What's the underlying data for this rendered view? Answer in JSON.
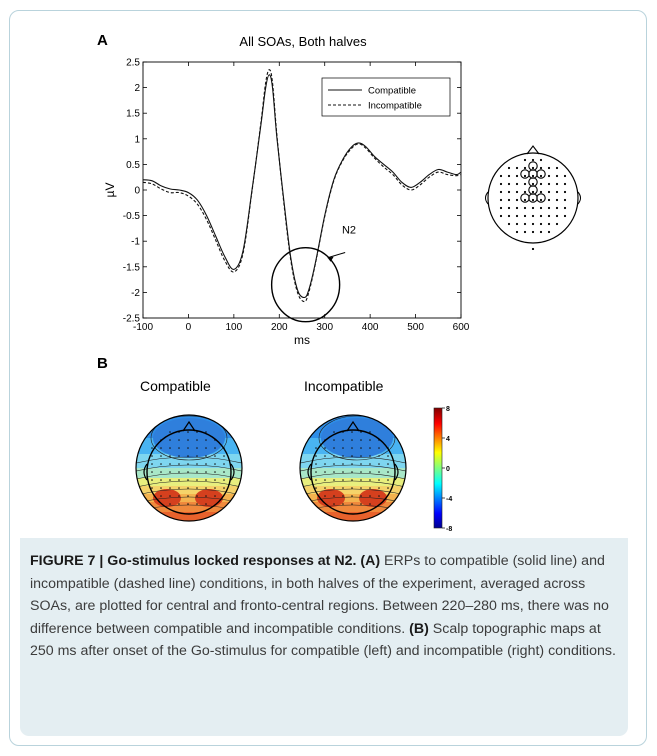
{
  "figure": {
    "panel_a_label": "A",
    "panel_b_label": "B",
    "plot_title": "All SOAs, Both halves",
    "annotation": "N2",
    "map_compatible_title": "Compatible",
    "map_incompatible_title": "Incompatible",
    "colorbar_ticks": [
      "8",
      "4",
      "0",
      "-4",
      "-8"
    ]
  },
  "chart_data": {
    "type": "line",
    "title": "All SOAs, Both halves",
    "xlabel": "ms",
    "ylabel": "µV",
    "xlim": [
      -100,
      600
    ],
    "ylim": [
      -2.5,
      2.5
    ],
    "x_ticks": [
      "-100",
      "0",
      "100",
      "200",
      "300",
      "400",
      "500",
      "600"
    ],
    "y_ticks": [
      "2.5",
      "2",
      "1.5",
      "1",
      "0.5",
      "0",
      "-0.5",
      "-1",
      "-1.5",
      "-2",
      "-2.5"
    ],
    "grid": false,
    "legend_position": "top-right",
    "series": [
      {
        "name": "Compatible",
        "style": "solid",
        "x": [
          -100,
          -80,
          -60,
          -40,
          -20,
          0,
          20,
          40,
          60,
          80,
          100,
          120,
          140,
          160,
          170,
          178,
          185,
          195,
          210,
          225,
          240,
          255,
          265,
          280,
          300,
          320,
          340,
          360,
          375,
          390,
          410,
          430,
          450,
          470,
          490,
          510,
          530,
          550,
          570,
          590,
          600
        ],
        "y": [
          0.2,
          0.18,
          0.08,
          0.02,
          0.0,
          -0.05,
          -0.2,
          -0.5,
          -0.9,
          -1.3,
          -1.55,
          -1.2,
          0.0,
          1.3,
          2.0,
          2.25,
          2.0,
          1.0,
          -0.2,
          -1.3,
          -1.95,
          -2.1,
          -1.95,
          -1.4,
          -0.5,
          0.2,
          0.6,
          0.85,
          0.92,
          0.85,
          0.65,
          0.5,
          0.35,
          0.15,
          0.05,
          0.15,
          0.3,
          0.4,
          0.35,
          0.3,
          0.35
        ]
      },
      {
        "name": "Incompatible",
        "style": "dashed",
        "x": [
          -100,
          -80,
          -60,
          -40,
          -20,
          0,
          20,
          40,
          60,
          80,
          100,
          120,
          140,
          160,
          170,
          178,
          185,
          195,
          210,
          225,
          240,
          255,
          265,
          280,
          300,
          320,
          340,
          360,
          375,
          390,
          410,
          430,
          450,
          470,
          490,
          510,
          530,
          550,
          570,
          590,
          600
        ],
        "y": [
          0.15,
          0.12,
          0.02,
          -0.05,
          -0.05,
          -0.12,
          -0.28,
          -0.58,
          -0.98,
          -1.38,
          -1.6,
          -1.25,
          -0.02,
          1.35,
          2.1,
          2.35,
          2.1,
          1.05,
          -0.25,
          -1.35,
          -2.0,
          -2.18,
          -2.0,
          -1.42,
          -0.52,
          0.18,
          0.58,
          0.82,
          0.9,
          0.82,
          0.62,
          0.45,
          0.3,
          0.1,
          0.0,
          0.1,
          0.25,
          0.35,
          0.3,
          0.28,
          0.3
        ]
      }
    ]
  },
  "caption": {
    "title": "FIGURE 7 | Go-stimulus locked responses at N2.",
    "label_a": "(A)",
    "text_a": "ERPs to compatible (solid line) and incompatible (dashed line) conditions, in both halves of the experiment, averaged across SOAs, are plotted for central and fronto-central regions. Between 220–280 ms, there was no difference between compatible and incompatible conditions.",
    "label_b": "(B)",
    "text_b": "Scalp topographic maps at 250 ms after onset of the Go-stimulus for compatible (left) and incompatible (right) conditions."
  }
}
